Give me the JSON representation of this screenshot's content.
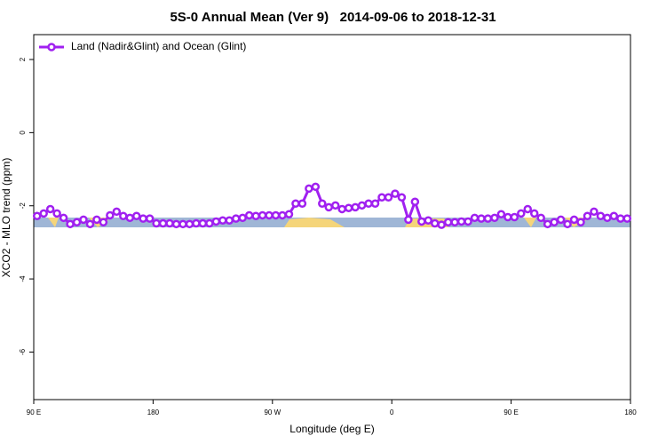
{
  "chart_data": {
    "type": "line",
    "title": "5S-0 Annual Mean (Ver 9)   2014-09-06 to 2018-12-31",
    "xlabel": "Longitude (deg E)",
    "ylabel": "XCO2 - MLO trend (ppm)",
    "x": [
      92.5,
      97.5,
      102.5,
      107.5,
      112.5,
      117.5,
      122.5,
      127.5,
      132.5,
      137.5,
      142.5,
      147.5,
      152.5,
      157.5,
      162.5,
      167.5,
      172.5,
      177.5,
      182.5,
      187.5,
      192.5,
      197.5,
      202.5,
      207.5,
      212.5,
      217.5,
      222.5,
      227.5,
      232.5,
      237.5,
      242.5,
      247.5,
      252.5,
      257.5,
      262.5,
      267.5,
      272.5,
      277.5,
      282.5,
      287.5,
      292.5,
      297.5,
      302.5,
      307.5,
      312.5,
      317.5,
      322.5,
      327.5,
      332.5,
      337.5,
      342.5,
      347.5,
      352.5,
      357.5,
      362.5,
      367.5,
      372.5,
      377.5,
      382.5,
      387.5,
      392.5,
      397.5,
      402.5,
      407.5,
      412.5,
      417.5,
      422.5,
      427.5,
      432.5,
      437.5,
      442.5,
      447.5,
      452.5,
      457.5,
      462.5,
      467.5,
      472.5,
      477.5,
      482.5,
      487.5,
      492.5,
      497.5,
      502.5,
      507.5,
      512.5,
      517.5,
      522.5,
      527.5,
      532.5,
      537.5
    ],
    "series": [
      {
        "name": "Land (Nadir&Glint) and Ocean (Glint)",
        "color": "#a020f0",
        "values": [
          -2.28,
          -2.21,
          -2.09,
          -2.21,
          -2.33,
          -2.5,
          -2.45,
          -2.38,
          -2.5,
          -2.38,
          -2.45,
          -2.26,
          -2.16,
          -2.28,
          -2.33,
          -2.28,
          -2.35,
          -2.35,
          -2.48,
          -2.48,
          -2.48,
          -2.5,
          -2.5,
          -2.5,
          -2.48,
          -2.48,
          -2.48,
          -2.43,
          -2.4,
          -2.4,
          -2.35,
          -2.33,
          -2.26,
          -2.28,
          -2.26,
          -2.26,
          -2.26,
          -2.26,
          -2.23,
          -1.94,
          -1.94,
          -1.53,
          -1.48,
          -1.94,
          -2.04,
          -1.99,
          -2.09,
          -2.06,
          -2.04,
          -1.99,
          -1.94,
          -1.94,
          -1.77,
          -1.77,
          -1.67,
          -1.77,
          -2.38,
          -1.89,
          -2.43,
          -2.4,
          -2.48,
          -2.52,
          -2.45,
          -2.45,
          -2.43,
          -2.43,
          -2.33,
          -2.35,
          -2.35,
          -2.33,
          -2.23,
          -2.31,
          -2.31,
          -2.21,
          -2.09,
          -2.21,
          -2.33,
          -2.5,
          -2.45,
          -2.38,
          -2.5,
          -2.38,
          -2.45,
          -2.28,
          -2.16,
          -2.28,
          -2.33,
          -2.28,
          -2.35,
          -2.35
        ]
      }
    ],
    "xlim": [
      90,
      540
    ],
    "xticks": [
      {
        "value": 90,
        "label": "90 E"
      },
      180,
      {
        "value": 270,
        "label": "90 W"
      },
      {
        "value": 360,
        "label": "0"
      },
      {
        "value": 450,
        "label": "90 E"
      },
      {
        "value": 540,
        "label": "180"
      }
    ],
    "ylim": [
      -7.3,
      2.68
    ],
    "yticks": [
      -6,
      -4,
      -2,
      0,
      2
    ],
    "legend": "top-left",
    "grid": false
  }
}
